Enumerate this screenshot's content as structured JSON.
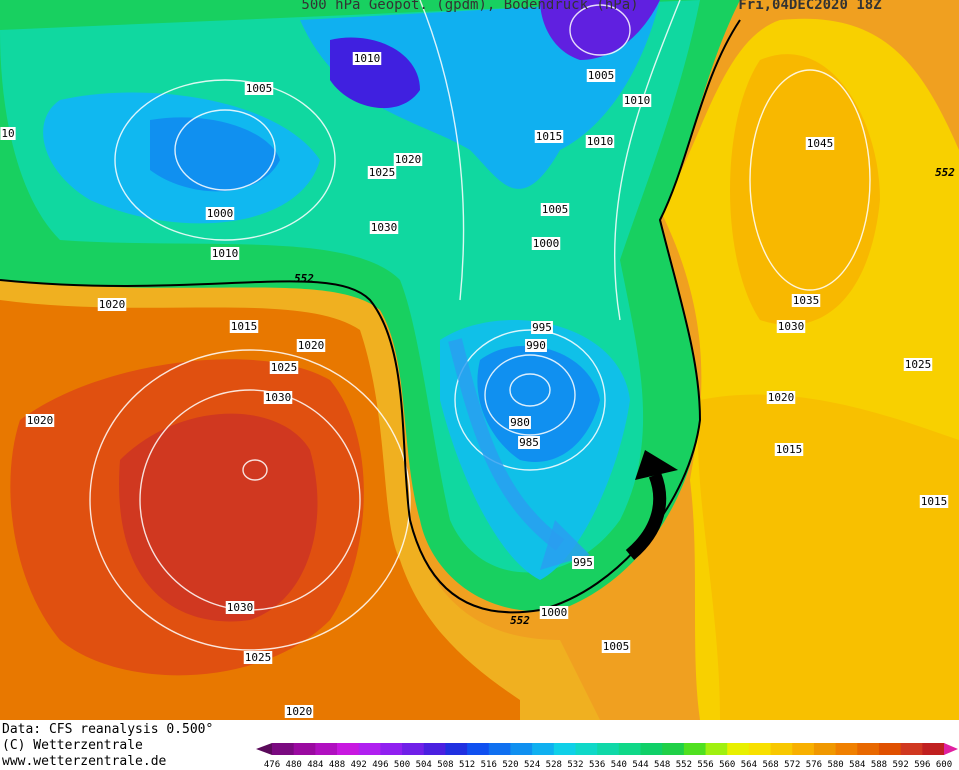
{
  "header": {
    "title": "500 hPa Geopot. (gpdm), Bodendruck (hPa)",
    "date": "Fri,04DEC2020 18Z"
  },
  "contour_labels": [
    1010,
    1005,
    1005,
    1010,
    10,
    1015,
    1010,
    1045,
    1020,
    1025,
    "552",
    1005,
    1000,
    1030,
    1000,
    1010,
    "552",
    1020,
    1035,
    995,
    1015,
    1030,
    1020,
    990,
    1025,
    1025,
    1030,
    1020,
    1020,
    980,
    985,
    1015,
    1015,
    995,
    1030,
    1000,
    "552",
    1005,
    1025,
    1020
  ],
  "footer": {
    "source": "Data: CFS reanalysis 0.500°",
    "copyright": "(C) Wetterzentrale",
    "url": "www.wetterzentrale.de"
  },
  "colorbar": {
    "ticks": [
      476,
      480,
      484,
      488,
      492,
      496,
      500,
      504,
      508,
      512,
      516,
      520,
      524,
      528,
      532,
      536,
      540,
      544,
      548,
      552,
      556,
      560,
      564,
      568,
      572,
      576,
      580,
      584,
      588,
      592,
      596,
      600
    ],
    "colors": [
      "#5a0a5a",
      "#7a0a80",
      "#9a0aa0",
      "#b010c0",
      "#c818e0",
      "#b020f0",
      "#9020f0",
      "#7020e8",
      "#4a20e0",
      "#2030e0",
      "#1050f0",
      "#1070f0",
      "#1090f0",
      "#10b0f0",
      "#10d0e8",
      "#10d8c8",
      "#10d8a8",
      "#10d888",
      "#10d068",
      "#20d048",
      "#50e020",
      "#a0f010",
      "#e8f000",
      "#f8e000",
      "#f8c800",
      "#f8b000",
      "#f09800",
      "#f08000",
      "#e86800",
      "#e05000",
      "#d03820",
      "#c02020",
      "#e020a0"
    ]
  }
}
